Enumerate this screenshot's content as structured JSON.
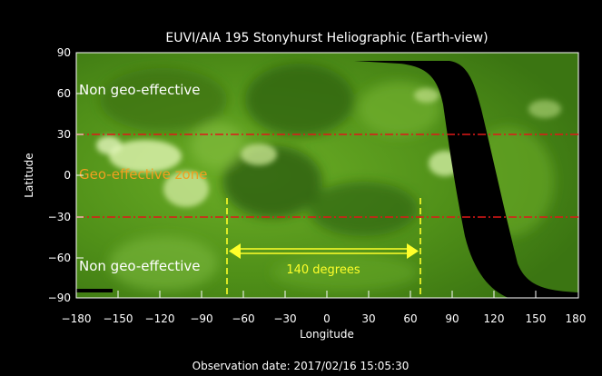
{
  "figure": {
    "title": "EUVI/AIA 195 Stonyhurst Heliographic (Earth-view)",
    "xlabel": "Longitude",
    "ylabel": "Latitude",
    "x_ticks": [
      "−180",
      "−150",
      "−120",
      "−90",
      "−60",
      "−30",
      "0",
      "30",
      "60",
      "90",
      "120",
      "150",
      "180"
    ],
    "y_ticks": [
      "90",
      "60",
      "30",
      "0",
      "−30",
      "−60",
      "−90"
    ],
    "observation_text": "Observation date: 2017/02/16 15:05:30",
    "annotations": {
      "non_geo_top": "Non geo-effective",
      "geo_zone": "Geo-effective zone",
      "non_geo_bottom": "Non geo-effective",
      "width_label": "140 degrees"
    },
    "colors": {
      "background": "#000000",
      "map_green": "#5a9a1c",
      "map_green_dark": "#2f6410",
      "map_highlight": "#d8f0a8",
      "zone_line": "#e01818",
      "marker_yellow": "#ffff2a",
      "label_orange": "#f0a020",
      "label_white": "#ffffff"
    },
    "zone_boundaries_lat": [
      30,
      -30
    ],
    "marker_longitudes": [
      -70,
      70
    ],
    "marker_span_deg": 140
  }
}
